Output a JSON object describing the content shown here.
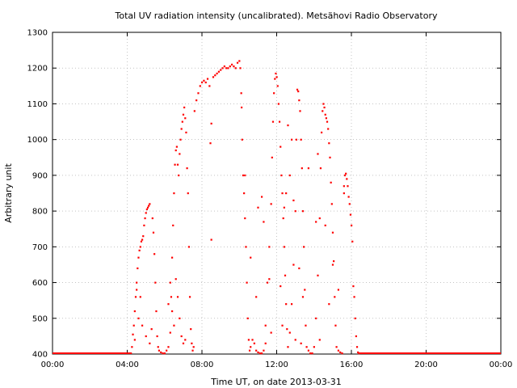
{
  "chart_data": {
    "type": "scatter",
    "title": "Total UV radiation intensity (uncalibrated). Metsähovi Radio Observatory",
    "xlabel": "Time UT, on date 2013-03-31",
    "ylabel": "Arbitrary unit",
    "xlim_hours": [
      0,
      24
    ],
    "ylim": [
      400,
      1300
    ],
    "x_ticks": [
      "00:00",
      "04:00",
      "08:00",
      "12:00",
      "16:00",
      "20:00",
      "00:00"
    ],
    "y_ticks": [
      "400",
      "500",
      "600",
      "700",
      "800",
      "900",
      "1000",
      "1100",
      "1200",
      "1300"
    ],
    "grid": true,
    "point_color": "#ff0000",
    "series": [
      {
        "x_unit": "hours UT",
        "points": [
          [
            4.25,
            420
          ],
          [
            4.3,
            455
          ],
          [
            4.35,
            480
          ],
          [
            4.4,
            520
          ],
          [
            4.45,
            560
          ],
          [
            4.5,
            600
          ],
          [
            4.55,
            640
          ],
          [
            4.6,
            670
          ],
          [
            4.65,
            690
          ],
          [
            4.7,
            700
          ],
          [
            4.75,
            715
          ],
          [
            4.8,
            720
          ],
          [
            4.85,
            730
          ],
          [
            4.9,
            760
          ],
          [
            4.95,
            780
          ],
          [
            5.0,
            795
          ],
          [
            5.05,
            805
          ],
          [
            5.1,
            810
          ],
          [
            5.15,
            815
          ],
          [
            5.2,
            820
          ],
          [
            4.4,
            440
          ],
          [
            4.5,
            580
          ],
          [
            4.6,
            500
          ],
          [
            4.7,
            560
          ],
          [
            4.8,
            480
          ],
          [
            5.0,
            450
          ],
          [
            5.2,
            430
          ],
          [
            5.3,
            470
          ],
          [
            5.35,
            780
          ],
          [
            5.4,
            740
          ],
          [
            5.45,
            680
          ],
          [
            5.5,
            600
          ],
          [
            5.55,
            520
          ],
          [
            5.6,
            450
          ],
          [
            5.65,
            420
          ],
          [
            5.7,
            410
          ],
          [
            5.8,
            405
          ],
          [
            5.9,
            402
          ],
          [
            6.0,
            400
          ],
          [
            6.1,
            410
          ],
          [
            6.2,
            420
          ],
          [
            6.3,
            460
          ],
          [
            6.35,
            560
          ],
          [
            6.4,
            670
          ],
          [
            6.45,
            760
          ],
          [
            6.5,
            850
          ],
          [
            6.55,
            930
          ],
          [
            6.6,
            970
          ],
          [
            6.65,
            980
          ],
          [
            6.7,
            930
          ],
          [
            6.75,
            900
          ],
          [
            6.8,
            960
          ],
          [
            6.85,
            1000
          ],
          [
            6.9,
            1030
          ],
          [
            6.95,
            1050
          ],
          [
            7.0,
            1070
          ],
          [
            7.05,
            1090
          ],
          [
            7.1,
            1060
          ],
          [
            7.15,
            1020
          ],
          [
            7.2,
            920
          ],
          [
            7.25,
            850
          ],
          [
            7.3,
            700
          ],
          [
            7.35,
            560
          ],
          [
            7.4,
            470
          ],
          [
            7.45,
            430
          ],
          [
            7.5,
            410
          ],
          [
            7.55,
            420
          ],
          [
            6.2,
            540
          ],
          [
            6.3,
            600
          ],
          [
            6.4,
            520
          ],
          [
            6.5,
            480
          ],
          [
            6.6,
            610
          ],
          [
            6.7,
            560
          ],
          [
            6.8,
            500
          ],
          [
            6.9,
            450
          ],
          [
            7.0,
            430
          ],
          [
            7.1,
            440
          ],
          [
            7.6,
            1080
          ],
          [
            7.7,
            1110
          ],
          [
            7.8,
            1130
          ],
          [
            7.9,
            1150
          ],
          [
            8.0,
            1160
          ],
          [
            8.1,
            1165
          ],
          [
            8.2,
            1160
          ],
          [
            8.3,
            1170
          ],
          [
            8.4,
            1150
          ],
          [
            8.5,
            1045
          ],
          [
            8.45,
            990
          ],
          [
            8.5,
            720
          ],
          [
            8.6,
            1175
          ],
          [
            8.7,
            1180
          ],
          [
            8.8,
            1185
          ],
          [
            8.9,
            1190
          ],
          [
            9.0,
            1195
          ],
          [
            9.1,
            1200
          ],
          [
            9.2,
            1205
          ],
          [
            9.3,
            1200
          ],
          [
            9.4,
            1200
          ],
          [
            9.5,
            1205
          ],
          [
            9.6,
            1210
          ],
          [
            9.7,
            1205
          ],
          [
            9.8,
            1200
          ],
          [
            9.9,
            1215
          ],
          [
            10.0,
            1220
          ],
          [
            10.05,
            1200
          ],
          [
            10.1,
            1130
          ],
          [
            10.12,
            1090
          ],
          [
            10.15,
            1000
          ],
          [
            10.2,
            900
          ],
          [
            10.25,
            850
          ],
          [
            10.3,
            780
          ],
          [
            10.35,
            700
          ],
          [
            10.4,
            600
          ],
          [
            10.45,
            500
          ],
          [
            10.5,
            440
          ],
          [
            10.55,
            410
          ],
          [
            10.6,
            420
          ],
          [
            10.7,
            440
          ],
          [
            10.8,
            430
          ],
          [
            10.9,
            410
          ],
          [
            11.0,
            405
          ],
          [
            11.1,
            402
          ],
          [
            11.2,
            400
          ],
          [
            11.3,
            410
          ],
          [
            11.4,
            430
          ],
          [
            11.5,
            600
          ],
          [
            11.6,
            700
          ],
          [
            11.7,
            820
          ],
          [
            11.75,
            950
          ],
          [
            11.8,
            1050
          ],
          [
            11.85,
            1130
          ],
          [
            11.9,
            1170
          ],
          [
            11.95,
            1185
          ],
          [
            12.0,
            1175
          ],
          [
            12.05,
            1150
          ],
          [
            12.1,
            1100
          ],
          [
            12.15,
            1050
          ],
          [
            12.2,
            980
          ],
          [
            12.25,
            900
          ],
          [
            12.3,
            850
          ],
          [
            12.35,
            780
          ],
          [
            12.4,
            700
          ],
          [
            12.45,
            620
          ],
          [
            12.5,
            540
          ],
          [
            12.55,
            470
          ],
          [
            12.6,
            420
          ],
          [
            12.7,
            460
          ],
          [
            12.8,
            540
          ],
          [
            12.9,
            650
          ],
          [
            13.0,
            800
          ],
          [
            13.05,
            1000
          ],
          [
            13.1,
            1140
          ],
          [
            13.15,
            1135
          ],
          [
            13.2,
            1110
          ],
          [
            13.25,
            1080
          ],
          [
            13.3,
            1000
          ],
          [
            13.35,
            920
          ],
          [
            13.4,
            800
          ],
          [
            13.45,
            700
          ],
          [
            13.5,
            580
          ],
          [
            13.55,
            480
          ],
          [
            13.6,
            420
          ],
          [
            13.7,
            410
          ],
          [
            13.8,
            400
          ],
          [
            13.9,
            402
          ],
          [
            14.0,
            420
          ],
          [
            14.1,
            500
          ],
          [
            14.2,
            620
          ],
          [
            14.3,
            780
          ],
          [
            14.35,
            920
          ],
          [
            14.4,
            1020
          ],
          [
            14.45,
            1080
          ],
          [
            14.5,
            1100
          ],
          [
            14.55,
            1090
          ],
          [
            14.6,
            1070
          ],
          [
            14.65,
            1060
          ],
          [
            14.7,
            1050
          ],
          [
            14.75,
            1030
          ],
          [
            14.8,
            990
          ],
          [
            14.85,
            950
          ],
          [
            14.9,
            880
          ],
          [
            14.95,
            820
          ],
          [
            15.0,
            740
          ],
          [
            15.05,
            660
          ],
          [
            15.1,
            560
          ],
          [
            15.15,
            480
          ],
          [
            15.2,
            420
          ],
          [
            15.3,
            410
          ],
          [
            15.4,
            405
          ],
          [
            15.5,
            402
          ],
          [
            15.6,
            870
          ],
          [
            15.65,
            900
          ],
          [
            15.7,
            905
          ],
          [
            15.75,
            890
          ],
          [
            15.8,
            870
          ],
          [
            15.85,
            840
          ],
          [
            15.9,
            820
          ],
          [
            15.95,
            790
          ],
          [
            16.0,
            760
          ],
          [
            16.05,
            715
          ],
          [
            16.1,
            590
          ],
          [
            16.15,
            560
          ],
          [
            16.2,
            500
          ],
          [
            16.25,
            450
          ],
          [
            16.3,
            420
          ],
          [
            16.35,
            405
          ],
          [
            16.4,
            400
          ],
          [
            10.3,
            900
          ],
          [
            10.6,
            670
          ],
          [
            11.0,
            810
          ],
          [
            11.2,
            840
          ],
          [
            11.3,
            770
          ],
          [
            11.6,
            610
          ],
          [
            12.2,
            590
          ],
          [
            12.6,
            1040
          ],
          [
            12.8,
            1000
          ],
          [
            12.9,
            830
          ],
          [
            13.2,
            640
          ],
          [
            13.4,
            560
          ],
          [
            13.7,
            920
          ],
          [
            14.1,
            770
          ],
          [
            14.2,
            960
          ],
          [
            14.6,
            760
          ],
          [
            14.8,
            540
          ],
          [
            15.0,
            650
          ],
          [
            15.3,
            580
          ],
          [
            15.6,
            850
          ],
          [
            12.4,
            810
          ],
          [
            12.5,
            850
          ],
          [
            12.7,
            900
          ],
          [
            10.9,
            560
          ],
          [
            11.4,
            480
          ],
          [
            11.7,
            460
          ],
          [
            12.3,
            480
          ],
          [
            13.0,
            440
          ],
          [
            13.3,
            430
          ],
          [
            14.3,
            440
          ]
        ]
      }
    ]
  }
}
